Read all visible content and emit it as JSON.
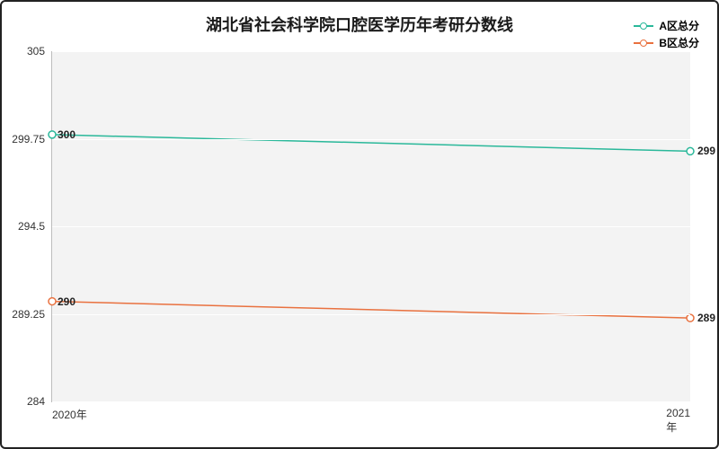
{
  "chart": {
    "type": "line",
    "title": "湖北省社会科学院口腔医学历年考研分数线",
    "title_fontsize": 18,
    "background_color": "#ffffff",
    "plot_background_color": "#f3f3f3",
    "grid_color": "#ffffff",
    "border_color": "#222222",
    "axis_color": "#bdbdbd",
    "label_fontsize": 12,
    "ylim": [
      284,
      305
    ],
    "yticks": [
      284,
      289.25,
      294.5,
      299.75,
      305
    ],
    "ytick_labels": [
      "284",
      "289.25",
      "294.5",
      "299.75",
      "305"
    ],
    "x_categories": [
      "2020年",
      "2021年"
    ],
    "series": [
      {
        "name": "A区总分",
        "color": "#2ab89a",
        "values": [
          300,
          299
        ],
        "line_width": 1.5,
        "marker": "circle",
        "marker_size": 4,
        "point_labels": [
          "300",
          "299"
        ]
      },
      {
        "name": "B区总分",
        "color": "#e9713f",
        "values": [
          290,
          289
        ],
        "line_width": 1.5,
        "marker": "circle",
        "marker_size": 4,
        "point_labels": [
          "290",
          "289"
        ]
      }
    ],
    "legend_position": "top-right"
  }
}
